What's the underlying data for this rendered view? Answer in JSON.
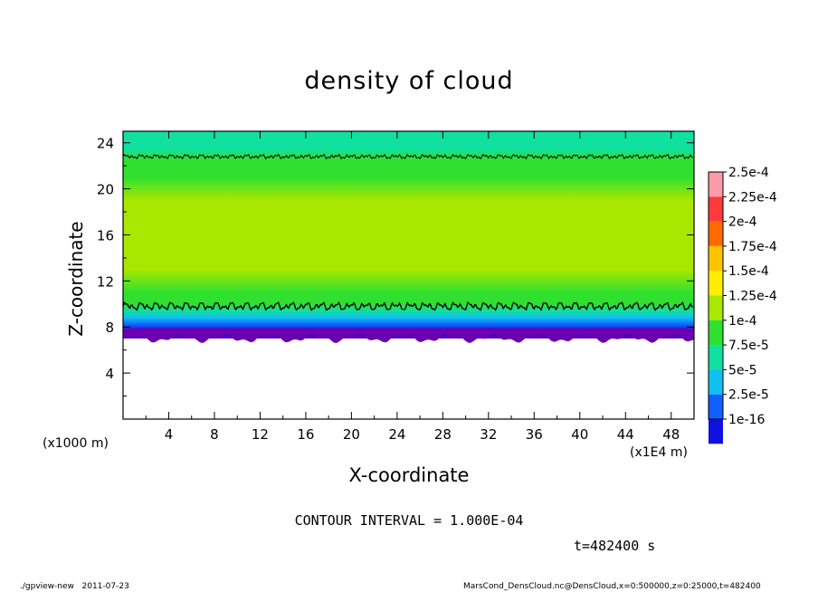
{
  "chart_data": {
    "type": "heatmap",
    "title": "density of cloud",
    "xlabel": "X-coordinate",
    "ylabel": "Z-coordinate",
    "x_unit_label": "(x1E4 m)",
    "z_unit_label": "(x1000 m)",
    "xlim": [
      0,
      50
    ],
    "ylim": [
      0,
      25
    ],
    "x_ticks": [
      4,
      8,
      12,
      16,
      20,
      24,
      28,
      32,
      36,
      40,
      44,
      48
    ],
    "y_ticks": [
      4,
      8,
      12,
      16,
      20,
      24
    ],
    "colorbar": {
      "labels": [
        "2.5e-4",
        "2.25e-4",
        "2e-4",
        "1.75e-4",
        "1.5e-4",
        "1.25e-4",
        "1e-4",
        "7.5e-5",
        "5e-5",
        "2.5e-5",
        "1e-16"
      ],
      "colors": [
        "#ffffff",
        "#ff9aa8",
        "#ff3a3a",
        "#ff6a00",
        "#ffc400",
        "#ffee00",
        "#a8e800",
        "#2fe02f",
        "#10e0a0",
        "#10c0f0",
        "#1060ff",
        "#1010e0",
        "#6a00b0"
      ]
    },
    "field_profile": {
      "z": [
        7,
        7.6,
        8.2,
        8.8,
        9.4,
        10.0,
        11,
        13,
        15,
        17,
        19,
        21,
        22.5,
        23.5,
        25
      ],
      "density": [
        1e-16,
        1.5e-05,
        3e-05,
        5e-05,
        7.5e-05,
        0.0001,
        0.000118,
        0.000128,
        0.000133,
        0.000133,
        0.00013,
        0.000118,
        0.000102,
        9e-05,
        8e-05
      ]
    },
    "cloud_base_z": 7,
    "contour_interval": 0.0001,
    "contour_level": 0.0001,
    "contour_lines_z": [
      9.8,
      22.8
    ]
  },
  "footer": {
    "contour_text": "CONTOUR INTERVAL = 1.000E-04",
    "time_text": "t=482400 s",
    "program": "./gpview-new",
    "date": "2011-07-23",
    "source": "MarsCond_DensCloud.nc@DensCloud,x=0:500000,z=0:25000,t=482400"
  }
}
